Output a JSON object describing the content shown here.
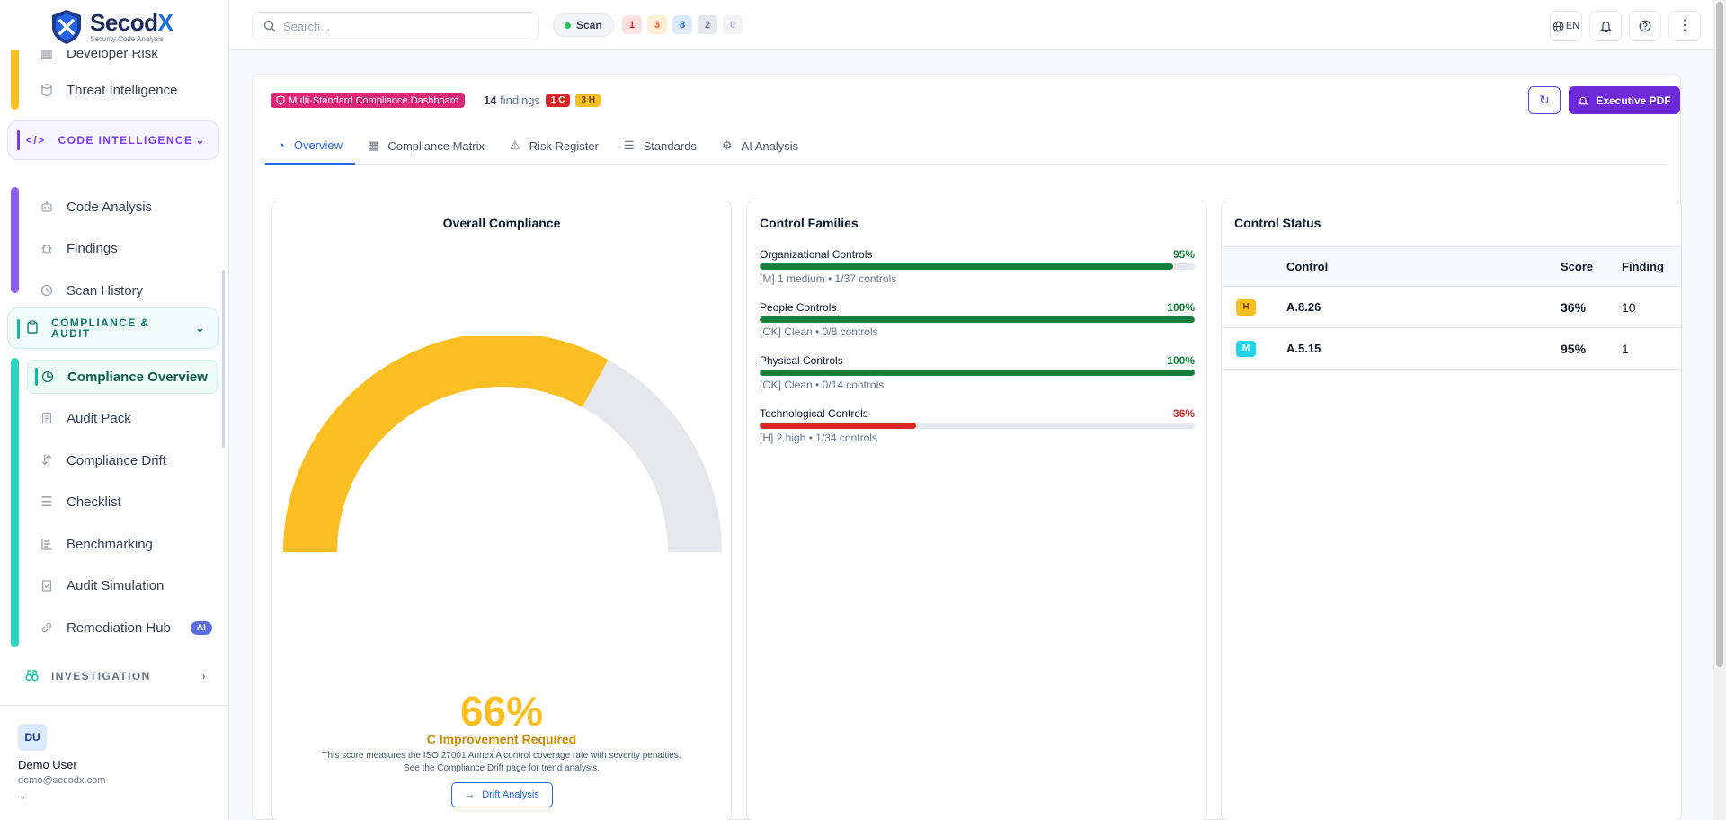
{
  "brand": {
    "name": "Secod",
    "name_accent": "X",
    "tagline": "Security Code Analysis"
  },
  "sidebar": {
    "partial_top_label": "Developer Risk",
    "threat_intel": "Threat Intelligence",
    "sections": {
      "code_intelligence": "CODE INTELLIGENCE",
      "compliance_audit": "COMPLIANCE & AUDIT",
      "investigation": "INVESTIGATION"
    },
    "code_items": [
      "Code Analysis",
      "Findings",
      "Scan History"
    ],
    "compliance_items": [
      "Compliance Overview",
      "Audit Pack",
      "Compliance Drift",
      "Checklist",
      "Benchmarking",
      "Audit Simulation",
      "Remediation Hub"
    ],
    "remediation_badge": "AI"
  },
  "user": {
    "initials": "DU",
    "name": "Demo User",
    "email": "demo@secodx.com"
  },
  "topbar": {
    "search_placeholder": "Search...",
    "scan_label": "Scan",
    "counts": [
      "1",
      "3",
      "8",
      "2",
      "0"
    ],
    "lang": "EN"
  },
  "header": {
    "dashboard_badge": "Multi-Standard Compliance Dashboard",
    "findings_count": "14",
    "findings_label": "findings",
    "critical_badge": "1 C",
    "high_badge": "3 H",
    "pdf_button": "Executive PDF"
  },
  "tabs": [
    "Overview",
    "Compliance Matrix",
    "Risk Register",
    "Standards",
    "AI Analysis"
  ],
  "overall": {
    "title": "Overall Compliance",
    "score": 66,
    "score_text": "66%",
    "grade": "C Improvement Required",
    "description_1": "This score measures the ISO 27001 Annex A control coverage rate with severity penalties.",
    "description_2": "See the Compliance Drift page for trend analysis.",
    "drift_button": "Drift Analysis"
  },
  "families": {
    "title": "Control Families",
    "items": [
      {
        "name": "Organizational Controls",
        "pct": 95,
        "pct_text": "95%",
        "sub": "[M] 1 medium • 1/37 controls"
      },
      {
        "name": "People Controls",
        "pct": 100,
        "pct_text": "100%",
        "sub": "[OK] Clean • 0/8 controls"
      },
      {
        "name": "Physical Controls",
        "pct": 100,
        "pct_text": "100%",
        "sub": "[OK] Clean • 0/14 controls"
      },
      {
        "name": "Technological Controls",
        "pct": 36,
        "pct_text": "36%",
        "sub": "[H] 2 high • 1/34 controls"
      }
    ]
  },
  "status": {
    "title": "Control Status",
    "headers": [
      "Control",
      "Score",
      "Finding"
    ],
    "rows": [
      {
        "sev": "H",
        "control": "A.8.26",
        "score": "36%",
        "finding": "10"
      },
      {
        "sev": "M",
        "control": "A.5.15",
        "score": "95%",
        "finding": "1"
      }
    ]
  },
  "colors": {
    "gauge_fill": "#fbbf24",
    "gauge_track": "#e5e7eb",
    "good": "#15803d",
    "bad": "#dc2626",
    "accent": "#2563eb",
    "brand_purple": "#6d28d9"
  }
}
